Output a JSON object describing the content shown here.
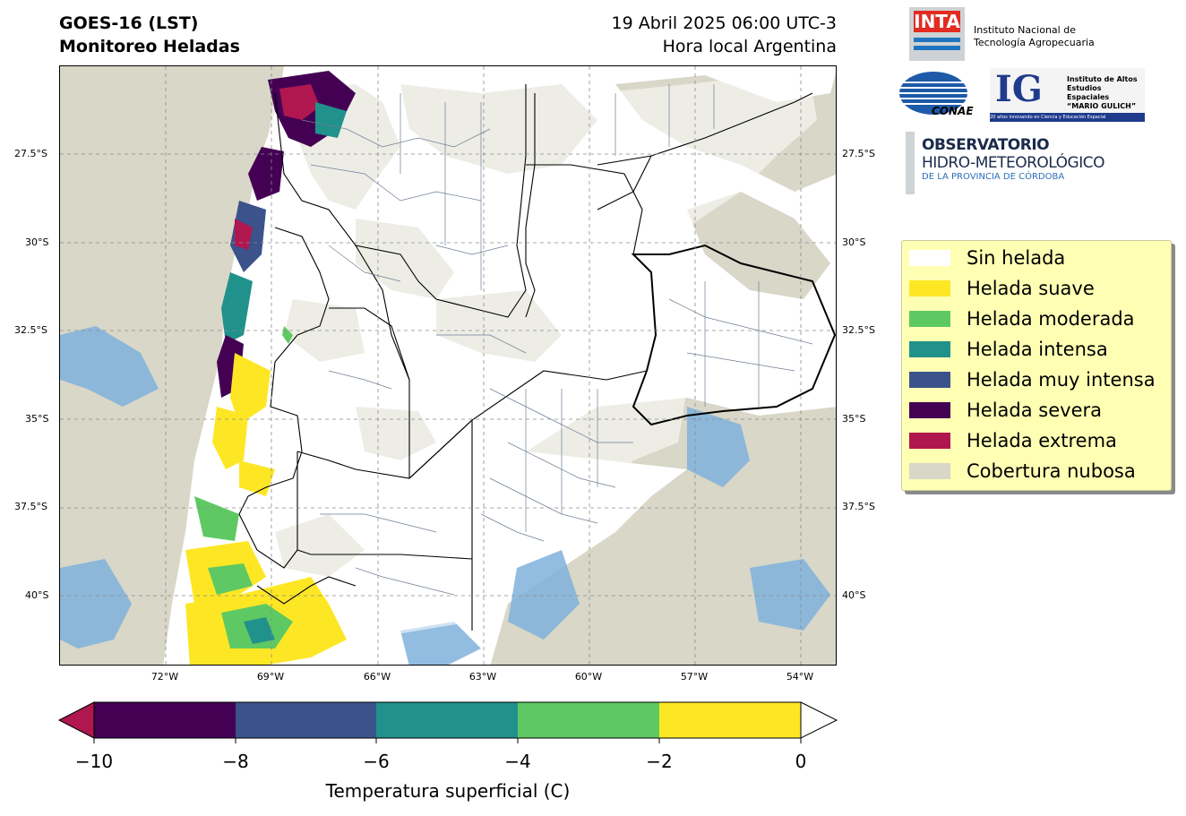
{
  "header": {
    "title_line1": "GOES-16 (LST)",
    "title_line2": "Monitoreo Heladas",
    "date_line": "19 Abril 2025 06:00 UTC-3",
    "local_line": "Hora local Argentina"
  },
  "map": {
    "lat_labels": [
      "27.5°S",
      "30°S",
      "32.5°S",
      "35°S",
      "37.5°S",
      "40°S"
    ],
    "lon_labels": [
      "72°W",
      "69°W",
      "66°W",
      "63°W",
      "60°W",
      "57°W",
      "54°W"
    ],
    "grid": true
  },
  "legend": {
    "items": [
      {
        "label": "Sin helada",
        "color": "#ffffff"
      },
      {
        "label": "Helada suave",
        "color": "#fde725"
      },
      {
        "label": "Helada moderada",
        "color": "#5ec962"
      },
      {
        "label": "Helada intensa",
        "color": "#21918c"
      },
      {
        "label": "Helada muy intensa",
        "color": "#3b528b"
      },
      {
        "label": "Helada severa",
        "color": "#440154"
      },
      {
        "label": "Helada extrema",
        "color": "#b0174f"
      },
      {
        "label": "Cobertura nubosa",
        "color": "#d8d7c8"
      }
    ]
  },
  "colorbar": {
    "ticks": [
      "−10",
      "−8",
      "−6",
      "−4",
      "−2",
      "0"
    ],
    "title": "Temperatura superficial (C)",
    "colors": [
      "#440154",
      "#3b528b",
      "#21918c",
      "#5ec962",
      "#fde725"
    ],
    "under_color": "#b0174f",
    "over_color": "#ffffff"
  },
  "logos": {
    "inta_mark": "INTA",
    "inta_name_1": "Instituto Nacional de",
    "inta_name_2": "Tecnología Agropecuaria",
    "conae": "CONAE",
    "ig_mark": "IG",
    "ig_name_1": "Instituto de Altos",
    "ig_name_2": "Estudios Espaciales",
    "ig_name_3": "“MARIO GULICH”",
    "ig_tagline": "20 años innovando en Ciencia y Educación Espacial",
    "obs_1": "OBSERVATORIO",
    "obs_2": "HIDRO-METEOROLÓGICO",
    "obs_3": "DE LA PROVINCIA DE CÓRDOBA"
  }
}
